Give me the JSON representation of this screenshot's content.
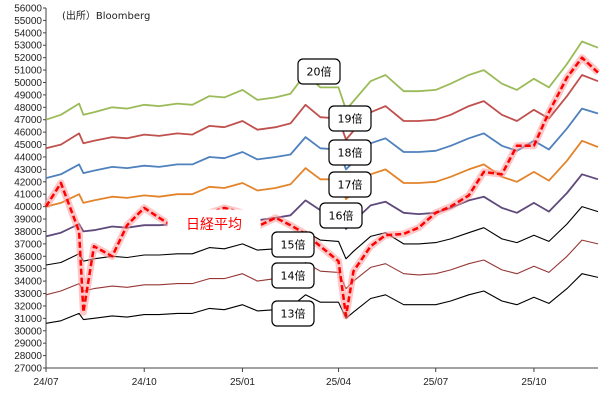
{
  "source_note": "(出所）Bloomberg",
  "chart_data": {
    "type": "line",
    "ylim": [
      27000,
      56000
    ],
    "y_ticks": [
      27000,
      28000,
      29000,
      30000,
      31000,
      32000,
      33000,
      34000,
      35000,
      36000,
      37000,
      38000,
      39000,
      40000,
      41000,
      42000,
      43000,
      44000,
      45000,
      46000,
      47000,
      48000,
      49000,
      50000,
      51000,
      52000,
      53000,
      54000,
      55000,
      56000
    ],
    "y_tick_labels": [
      "27000",
      "28000",
      "29000",
      "30000",
      "31000",
      "32000",
      "33000",
      "34000",
      "35000",
      "36000",
      "37000",
      "38000",
      "39000",
      "40000",
      "41000",
      "42000",
      "43000",
      "44000",
      "45000",
      "46000",
      "47000",
      "48000",
      "49000",
      "50000",
      "51000",
      "52000",
      "53000",
      "54000",
      "55000",
      "56000"
    ],
    "xlim": [
      "2024-07-01",
      "2025-11-30"
    ],
    "x_ticks": [
      "2024-07-01",
      "2024-10-01",
      "2025-01-01",
      "2025-04-01",
      "2025-07-01",
      "2025-10-01"
    ],
    "x_tick_labels": [
      "24/07",
      "24/10",
      "25/01",
      "25/04",
      "25/07",
      "25/10"
    ],
    "x": [
      "2024-07-01",
      "2024-07-15",
      "2024-08-01",
      "2024-08-05",
      "2024-08-15",
      "2024-09-01",
      "2024-09-15",
      "2024-10-01",
      "2024-10-15",
      "2024-11-01",
      "2024-11-15",
      "2024-12-01",
      "2024-12-15",
      "2025-01-01",
      "2025-01-15",
      "2025-02-01",
      "2025-02-15",
      "2025-03-01",
      "2025-03-15",
      "2025-04-01",
      "2025-04-08",
      "2025-04-15",
      "2025-05-01",
      "2025-05-15",
      "2025-06-01",
      "2025-06-15",
      "2025-07-01",
      "2025-07-15",
      "2025-08-01",
      "2025-08-15",
      "2025-09-01",
      "2025-09-15",
      "2025-10-01",
      "2025-10-15",
      "2025-11-01",
      "2025-11-15",
      "2025-11-30"
    ],
    "series": [
      {
        "name": "20倍",
        "color": "#9bbb59",
        "values": [
          47000,
          47400,
          48300,
          47400,
          47600,
          48000,
          47900,
          48200,
          48100,
          48300,
          48200,
          48900,
          48800,
          49400,
          48600,
          48800,
          49100,
          50700,
          49600,
          49600,
          47800,
          48500,
          50100,
          50600,
          49300,
          49300,
          49400,
          49900,
          50600,
          51000,
          49900,
          49400,
          50300,
          49600,
          51500,
          53300,
          52800
        ]
      },
      {
        "name": "19倍",
        "color": "#c0504d",
        "values": [
          44700,
          45000,
          45900,
          45100,
          45300,
          45600,
          45500,
          45800,
          45700,
          45900,
          45800,
          46500,
          46400,
          46900,
          46200,
          46400,
          46700,
          48200,
          47200,
          47100,
          45400,
          46100,
          47600,
          48100,
          46900,
          46900,
          47000,
          47400,
          48100,
          48500,
          47400,
          46900,
          47800,
          47100,
          48900,
          50600,
          50100
        ]
      },
      {
        "name": "18倍",
        "color": "#4f81bd",
        "values": [
          42300,
          42600,
          43400,
          42700,
          42900,
          43200,
          43100,
          43300,
          43200,
          43400,
          43400,
          44000,
          43900,
          44400,
          43800,
          44000,
          44200,
          45600,
          44700,
          44600,
          43000,
          43600,
          45100,
          45500,
          44400,
          44400,
          44500,
          44900,
          45500,
          45900,
          44900,
          44500,
          45300,
          44600,
          46300,
          47900,
          47500
        ]
      },
      {
        "name": "17倍",
        "color": "#e3842b",
        "values": [
          40000,
          40300,
          41000,
          40300,
          40500,
          40800,
          40700,
          40900,
          40800,
          41000,
          41000,
          41600,
          41500,
          41900,
          41300,
          41500,
          41800,
          43100,
          42200,
          42200,
          40600,
          41200,
          42600,
          43000,
          41900,
          41900,
          42000,
          42400,
          43000,
          43400,
          42400,
          42000,
          42800,
          42100,
          43700,
          45300,
          44800
        ]
      },
      {
        "name": "16倍",
        "color": "#604a7b",
        "values": [
          37600,
          37900,
          38600,
          38000,
          38100,
          38400,
          38300,
          38500,
          38500,
          38600,
          38600,
          39100,
          39000,
          39500,
          38900,
          39100,
          39300,
          40500,
          39700,
          39700,
          38200,
          38800,
          40100,
          40400,
          39500,
          39400,
          39500,
          39900,
          40500,
          40800,
          39900,
          39500,
          40300,
          39600,
          41100,
          42600,
          42200
        ]
      },
      {
        "name": "15倍",
        "color": "#000000",
        "values": [
          35300,
          35500,
          36200,
          35600,
          35800,
          36000,
          35900,
          36100,
          36100,
          36200,
          36200,
          36700,
          36600,
          37000,
          36500,
          36600,
          36900,
          38000,
          37300,
          37200,
          35800,
          36400,
          37600,
          37900,
          37000,
          37000,
          37100,
          37400,
          37900,
          38300,
          37400,
          37100,
          37700,
          37200,
          38600,
          40000,
          39600
        ]
      },
      {
        "name": "14倍",
        "color": "#953735",
        "values": [
          32900,
          33200,
          33800,
          33200,
          33400,
          33600,
          33500,
          33700,
          33700,
          33800,
          33800,
          34200,
          34200,
          34600,
          34000,
          34200,
          34400,
          35500,
          34800,
          34700,
          33400,
          34000,
          35100,
          35400,
          34600,
          34500,
          34600,
          34900,
          35400,
          35700,
          34900,
          34600,
          35200,
          34700,
          36000,
          37300,
          37000
        ]
      },
      {
        "name": "13倍",
        "color": "#000000",
        "values": [
          30600,
          30800,
          31400,
          30900,
          31000,
          31200,
          31100,
          31300,
          31300,
          31400,
          31400,
          31800,
          31700,
          32100,
          31600,
          31700,
          31900,
          32900,
          32300,
          32300,
          31000,
          31500,
          32600,
          32900,
          32100,
          32100,
          32100,
          32400,
          32900,
          33200,
          32400,
          32100,
          32700,
          32200,
          33400,
          34600,
          34300
        ]
      },
      {
        "name": "日経平均",
        "color": "#ff0000",
        "values": [
          40000,
          41900,
          38000,
          31500,
          36800,
          36000,
          38500,
          39900,
          39100,
          38200,
          38600,
          39500,
          39900,
          39500,
          38400,
          39100,
          38500,
          37800,
          36800,
          35600,
          31200,
          34800,
          36800,
          37700,
          37800,
          38300,
          39500,
          40000,
          40900,
          42800,
          42600,
          44900,
          44900,
          47600,
          50400,
          52000,
          50800
        ]
      }
    ],
    "series_labels": [
      "20倍",
      "19倍",
      "18倍",
      "17倍",
      "16倍",
      "15倍",
      "14倍",
      "13倍"
    ],
    "nikkei_label": "日経平均"
  }
}
